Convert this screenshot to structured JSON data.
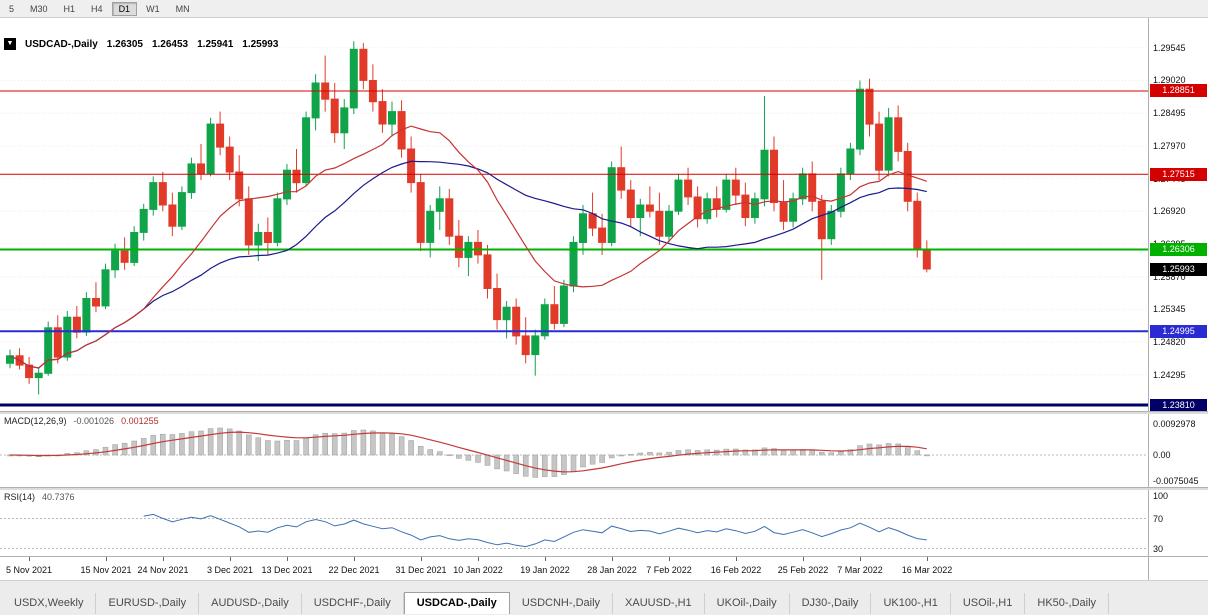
{
  "colors": {
    "up": "#0fa44a",
    "down": "#e23a28",
    "ma_fast": "#c43434",
    "ma_slow": "#1a1a8c",
    "macd_hist_fill": "#c6c6c6",
    "macd_hist_stroke": "#9c9c9c",
    "macd_signal": "#c23b3b",
    "rsi_line": "#3f6fb5",
    "current_tag_bg": "#000000",
    "grid": "#ececec"
  },
  "toolbar": {
    "timeframes": [
      {
        "label": "5",
        "active": false
      },
      {
        "label": "M30",
        "active": false
      },
      {
        "label": "H1",
        "active": false
      },
      {
        "label": "H4",
        "active": false
      },
      {
        "label": "D1",
        "active": true
      },
      {
        "label": "W1",
        "active": false
      },
      {
        "label": "MN",
        "active": false
      }
    ]
  },
  "header": {
    "symbol": "USDCAD-,Daily",
    "open": "1.26305",
    "high": "1.26453",
    "low": "1.25941",
    "close": "1.25993"
  },
  "chart_data": {
    "type": "candlestick",
    "symbol": "USDCAD",
    "timeframe": "Daily",
    "price_axis": {
      "ticks": [
        "1.29545",
        "1.29020",
        "1.28495",
        "1.27970",
        "1.27445",
        "1.26920",
        "1.26395",
        "1.25870",
        "1.25345",
        "1.24820",
        "1.24295"
      ],
      "view_max": 1.2983,
      "view_min": 1.2373
    },
    "date_labels": [
      {
        "label": "5 Nov 2021",
        "index": 2
      },
      {
        "label": "15 Nov 2021",
        "index": 10
      },
      {
        "label": "24 Nov 2021",
        "index": 16
      },
      {
        "label": "3 Dec 2021",
        "index": 23
      },
      {
        "label": "13 Dec 2021",
        "index": 29
      },
      {
        "label": "22 Dec 2021",
        "index": 36
      },
      {
        "label": "31 Dec 2021",
        "index": 43
      },
      {
        "label": "10 Jan 2022",
        "index": 49
      },
      {
        "label": "19 Jan 2022",
        "index": 56
      },
      {
        "label": "28 Jan 2022",
        "index": 63
      },
      {
        "label": "7 Feb 2022",
        "index": 69
      },
      {
        "label": "16 Feb 2022",
        "index": 76
      },
      {
        "label": "25 Feb 2022",
        "index": 83
      },
      {
        "label": "7 Mar 2022",
        "index": 89
      },
      {
        "label": "16 Mar 2022",
        "index": 96
      }
    ],
    "candles": [
      [
        1.2448,
        1.247,
        1.244,
        1.246
      ],
      [
        1.246,
        1.2472,
        1.2438,
        1.2445
      ],
      [
        1.2445,
        1.2458,
        1.2415,
        1.2425
      ],
      [
        1.2425,
        1.244,
        1.2398,
        1.2432
      ],
      [
        1.2432,
        1.2515,
        1.2428,
        1.2505
      ],
      [
        1.2505,
        1.2525,
        1.2448,
        1.2458
      ],
      [
        1.2458,
        1.2532,
        1.2452,
        1.2522
      ],
      [
        1.2522,
        1.254,
        1.2488,
        1.2498
      ],
      [
        1.2498,
        1.2562,
        1.2492,
        1.2552
      ],
      [
        1.2552,
        1.2578,
        1.253,
        1.254
      ],
      [
        1.254,
        1.2608,
        1.2535,
        1.2598
      ],
      [
        1.2598,
        1.264,
        1.2585,
        1.2628
      ],
      [
        1.2628,
        1.265,
        1.2598,
        1.261
      ],
      [
        1.261,
        1.2668,
        1.2604,
        1.2658
      ],
      [
        1.2658,
        1.2704,
        1.2645,
        1.2695
      ],
      [
        1.2695,
        1.2748,
        1.2685,
        1.2738
      ],
      [
        1.2738,
        1.2755,
        1.2692,
        1.2702
      ],
      [
        1.2702,
        1.2722,
        1.2652,
        1.2668
      ],
      [
        1.2668,
        1.2732,
        1.2662,
        1.2722
      ],
      [
        1.2722,
        1.2778,
        1.2712,
        1.2768
      ],
      [
        1.2768,
        1.28,
        1.2742,
        1.2752
      ],
      [
        1.2752,
        1.2842,
        1.2748,
        1.2832
      ],
      [
        1.2832,
        1.2852,
        1.2782,
        1.2795
      ],
      [
        1.2795,
        1.2812,
        1.2742,
        1.2755
      ],
      [
        1.2755,
        1.2782,
        1.27,
        1.2712
      ],
      [
        1.2712,
        1.2732,
        1.2622,
        1.2638
      ],
      [
        1.2638,
        1.2672,
        1.2612,
        1.2658
      ],
      [
        1.2658,
        1.2682,
        1.2622,
        1.2642
      ],
      [
        1.2642,
        1.2722,
        1.2636,
        1.2712
      ],
      [
        1.2712,
        1.2768,
        1.2702,
        1.2758
      ],
      [
        1.2758,
        1.2792,
        1.2722,
        1.2738
      ],
      [
        1.2738,
        1.2852,
        1.2732,
        1.2842
      ],
      [
        1.2842,
        1.2912,
        1.2822,
        1.2898
      ],
      [
        1.2898,
        1.2942,
        1.2852,
        1.2872
      ],
      [
        1.2872,
        1.2898,
        1.2802,
        1.2818
      ],
      [
        1.2818,
        1.2872,
        1.2792,
        1.2858
      ],
      [
        1.2858,
        1.2965,
        1.2848,
        1.2952
      ],
      [
        1.2952,
        1.2962,
        1.2888,
        1.2902
      ],
      [
        1.2902,
        1.2928,
        1.2852,
        1.2868
      ],
      [
        1.2868,
        1.2888,
        1.2818,
        1.2832
      ],
      [
        1.2832,
        1.2868,
        1.2812,
        1.2852
      ],
      [
        1.2852,
        1.287,
        1.2778,
        1.2792
      ],
      [
        1.2792,
        1.2812,
        1.2722,
        1.2738
      ],
      [
        1.2738,
        1.2752,
        1.2628,
        1.2642
      ],
      [
        1.2642,
        1.2702,
        1.2618,
        1.2692
      ],
      [
        1.2692,
        1.2732,
        1.2662,
        1.2712
      ],
      [
        1.2712,
        1.2728,
        1.2638,
        1.2652
      ],
      [
        1.2652,
        1.2678,
        1.2602,
        1.2618
      ],
      [
        1.2618,
        1.2652,
        1.2588,
        1.2642
      ],
      [
        1.2642,
        1.2662,
        1.2608,
        1.2622
      ],
      [
        1.2622,
        1.2638,
        1.2552,
        1.2568
      ],
      [
        1.2568,
        1.2592,
        1.2502,
        1.2518
      ],
      [
        1.2518,
        1.2548,
        1.2488,
        1.2538
      ],
      [
        1.2538,
        1.2552,
        1.2478,
        1.2492
      ],
      [
        1.2492,
        1.2522,
        1.2448,
        1.2462
      ],
      [
        1.2462,
        1.2502,
        1.2428,
        1.2492
      ],
      [
        1.2492,
        1.2552,
        1.2486,
        1.2542
      ],
      [
        1.2542,
        1.2572,
        1.2502,
        1.2512
      ],
      [
        1.2512,
        1.2582,
        1.2506,
        1.2572
      ],
      [
        1.2572,
        1.2652,
        1.2562,
        1.2642
      ],
      [
        1.2642,
        1.2702,
        1.2622,
        1.2688
      ],
      [
        1.2688,
        1.2722,
        1.2652,
        1.2665
      ],
      [
        1.2665,
        1.2688,
        1.2622,
        1.2642
      ],
      [
        1.2642,
        1.2772,
        1.2636,
        1.2762
      ],
      [
        1.2762,
        1.2796,
        1.2712,
        1.2726
      ],
      [
        1.2726,
        1.2742,
        1.2668,
        1.2682
      ],
      [
        1.2682,
        1.2712,
        1.2652,
        1.2702
      ],
      [
        1.2702,
        1.2732,
        1.2682,
        1.2692
      ],
      [
        1.2692,
        1.2722,
        1.2638,
        1.2652
      ],
      [
        1.2652,
        1.2702,
        1.2642,
        1.2692
      ],
      [
        1.2692,
        1.2752,
        1.2686,
        1.2742
      ],
      [
        1.2742,
        1.2762,
        1.2702,
        1.2715
      ],
      [
        1.2715,
        1.2732,
        1.2666,
        1.268
      ],
      [
        1.268,
        1.2722,
        1.2672,
        1.2712
      ],
      [
        1.2712,
        1.2732,
        1.2682,
        1.2695
      ],
      [
        1.2695,
        1.2752,
        1.269,
        1.2742
      ],
      [
        1.2742,
        1.2762,
        1.2702,
        1.2718
      ],
      [
        1.2718,
        1.2738,
        1.2668,
        1.2682
      ],
      [
        1.2682,
        1.2722,
        1.2672,
        1.2712
      ],
      [
        1.2712,
        1.2877,
        1.27,
        1.279
      ],
      [
        1.279,
        1.2812,
        1.2692,
        1.2706
      ],
      [
        1.2706,
        1.2742,
        1.2662,
        1.2676
      ],
      [
        1.2676,
        1.2722,
        1.2666,
        1.2712
      ],
      [
        1.2712,
        1.2762,
        1.2702,
        1.2752
      ],
      [
        1.2752,
        1.2772,
        1.2692,
        1.2708
      ],
      [
        1.2708,
        1.2718,
        1.2582,
        1.2648
      ],
      [
        1.2648,
        1.2702,
        1.2638,
        1.2692
      ],
      [
        1.2692,
        1.2762,
        1.2682,
        1.2752
      ],
      [
        1.2752,
        1.2802,
        1.2742,
        1.2792
      ],
      [
        1.2792,
        1.2902,
        1.2782,
        1.2888
      ],
      [
        1.2888,
        1.2905,
        1.2812,
        1.2832
      ],
      [
        1.2832,
        1.2852,
        1.2742,
        1.2758
      ],
      [
        1.2758,
        1.2858,
        1.2748,
        1.2842
      ],
      [
        1.2842,
        1.2862,
        1.2772,
        1.2788
      ],
      [
        1.2788,
        1.2802,
        1.2692,
        1.2708
      ],
      [
        1.2708,
        1.2722,
        1.2618,
        1.2631
      ],
      [
        1.26305,
        1.26453,
        1.25941,
        1.25993
      ]
    ],
    "levels": [
      {
        "name": "resistance-upper",
        "price": 1.28851,
        "label": "1.28851",
        "color": "#d40000",
        "width": 1
      },
      {
        "name": "resistance-lower",
        "price": 1.27515,
        "label": "1.27515",
        "color": "#d40000",
        "width": 1
      },
      {
        "name": "support-green",
        "price": 1.26306,
        "label": "1.26306",
        "color": "#00b100",
        "width": 2
      },
      {
        "name": "support-blue",
        "price": 1.24995,
        "label": "1.24995",
        "color": "#2b2bd4",
        "width": 2
      },
      {
        "name": "support-navy",
        "price": 1.2381,
        "label": "1.23810",
        "color": "#000066",
        "width": 3
      }
    ],
    "current_price": {
      "price": 1.25993,
      "label": "1.25993"
    },
    "overlays": [
      {
        "name": "ma-fast-red",
        "type": "sma",
        "period": 15
      },
      {
        "name": "ma-slow-blue",
        "type": "sma",
        "period": 30
      }
    ],
    "indicators": {
      "macd": {
        "label": "MACD(12,26,9)",
        "params": [
          12,
          26,
          9
        ],
        "value": "-0.001026",
        "signal_value": "0.001255",
        "axis_ticks": [
          "0.0092978",
          "0.00",
          "-0.0075045"
        ]
      },
      "rsi": {
        "label": "RSI(14)",
        "period": 14,
        "value": "40.7376",
        "axis_ticks": [
          "100",
          "70",
          "30"
        ],
        "guide_levels": [
          70,
          30
        ]
      }
    }
  },
  "tabs": [
    {
      "label": "USDX,Weekly",
      "active": false
    },
    {
      "label": "EURUSD-,Daily",
      "active": false
    },
    {
      "label": "AUDUSD-,Daily",
      "active": false
    },
    {
      "label": "USDCHF-,Daily",
      "active": false
    },
    {
      "label": "USDCAD-,Daily",
      "active": true
    },
    {
      "label": "USDCNH-,Daily",
      "active": false
    },
    {
      "label": "XAUUSD-,H1",
      "active": false
    },
    {
      "label": "UKOil-,Daily",
      "active": false
    },
    {
      "label": "DJ30-,Daily",
      "active": false
    },
    {
      "label": "UK100-,H1",
      "active": false
    },
    {
      "label": "USOil-,H1",
      "active": false
    },
    {
      "label": "HK50-,Daily",
      "active": false
    }
  ]
}
